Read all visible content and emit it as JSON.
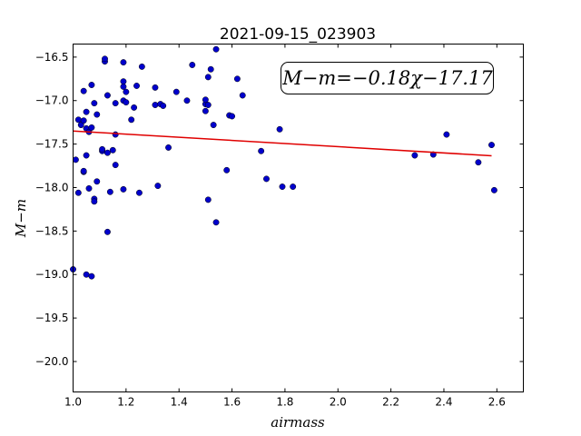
{
  "chart_data": {
    "type": "scatter",
    "title": "2021-09-15_023903",
    "xlabel": "airmass",
    "ylabel": "M−m",
    "xlim": [
      1.0,
      2.7
    ],
    "ylim": [
      -20.35,
      -16.35
    ],
    "y_inverted": true,
    "x_ticks": [
      1.0,
      1.2,
      1.4,
      1.6,
      1.8,
      2.0,
      2.2,
      2.4,
      2.6
    ],
    "x_tick_labels": [
      "1.0",
      "1.2",
      "1.4",
      "1.6",
      "1.8",
      "2.0",
      "2.2",
      "2.4",
      "2.6"
    ],
    "y_ticks": [
      -16.5,
      -17.0,
      -17.5,
      -18.0,
      -18.5,
      -19.0,
      -19.5,
      -20.0
    ],
    "y_tick_labels": [
      "−16.5",
      "−17.0",
      "−17.5",
      "−18.0",
      "−18.5",
      "−19.0",
      "−19.5",
      "−20.0"
    ],
    "grid": false,
    "annotation": "M−m=−0.18χ−17.17",
    "fit": {
      "slope": -0.18,
      "intercept": -17.17,
      "x_range": [
        1.0,
        2.58
      ],
      "color": "#e00000"
    },
    "marker_color": "#0000cc",
    "points": [
      [
        1.0,
        -18.94
      ],
      [
        1.01,
        -17.68
      ],
      [
        1.02,
        -17.22
      ],
      [
        1.02,
        -18.06
      ],
      [
        1.03,
        -17.28
      ],
      [
        1.04,
        -17.23
      ],
      [
        1.04,
        -17.82
      ],
      [
        1.04,
        -17.81
      ],
      [
        1.04,
        -16.89
      ],
      [
        1.05,
        -17.32
      ],
      [
        1.05,
        -17.13
      ],
      [
        1.05,
        -17.63
      ],
      [
        1.05,
        -19.0
      ],
      [
        1.06,
        -17.36
      ],
      [
        1.06,
        -18.01
      ],
      [
        1.07,
        -19.02
      ],
      [
        1.07,
        -16.82
      ],
      [
        1.07,
        -17.31
      ],
      [
        1.08,
        -17.03
      ],
      [
        1.08,
        -18.13
      ],
      [
        1.08,
        -18.16
      ],
      [
        1.09,
        -17.93
      ],
      [
        1.09,
        -17.16
      ],
      [
        1.11,
        -17.58
      ],
      [
        1.11,
        -17.56
      ],
      [
        1.12,
        -16.55
      ],
      [
        1.12,
        -16.52
      ],
      [
        1.13,
        -18.51
      ],
      [
        1.13,
        -16.94
      ],
      [
        1.13,
        -17.6
      ],
      [
        1.14,
        -18.05
      ],
      [
        1.15,
        -17.57
      ],
      [
        1.16,
        -17.03
      ],
      [
        1.16,
        -17.39
      ],
      [
        1.16,
        -17.74
      ],
      [
        1.19,
        -17.0
      ],
      [
        1.19,
        -16.84
      ],
      [
        1.19,
        -16.56
      ],
      [
        1.19,
        -16.78
      ],
      [
        1.19,
        -18.02
      ],
      [
        1.2,
        -17.02
      ],
      [
        1.2,
        -16.9
      ],
      [
        1.22,
        -17.22
      ],
      [
        1.23,
        -17.08
      ],
      [
        1.24,
        -16.83
      ],
      [
        1.25,
        -18.06
      ],
      [
        1.26,
        -16.61
      ],
      [
        1.31,
        -17.05
      ],
      [
        1.31,
        -16.85
      ],
      [
        1.32,
        -17.98
      ],
      [
        1.33,
        -17.04
      ],
      [
        1.34,
        -17.06
      ],
      [
        1.36,
        -17.54
      ],
      [
        1.39,
        -16.9
      ],
      [
        1.43,
        -17.0
      ],
      [
        1.45,
        -16.59
      ],
      [
        1.5,
        -17.04
      ],
      [
        1.5,
        -17.12
      ],
      [
        1.5,
        -16.99
      ],
      [
        1.51,
        -16.73
      ],
      [
        1.51,
        -17.05
      ],
      [
        1.51,
        -18.14
      ],
      [
        1.52,
        -16.64
      ],
      [
        1.53,
        -17.28
      ],
      [
        1.54,
        -16.41
      ],
      [
        1.54,
        -18.4
      ],
      [
        1.58,
        -17.8
      ],
      [
        1.59,
        -17.17
      ],
      [
        1.6,
        -17.18
      ],
      [
        1.62,
        -16.75
      ],
      [
        1.64,
        -16.94
      ],
      [
        1.71,
        -17.58
      ],
      [
        1.73,
        -17.9
      ],
      [
        1.78,
        -17.33
      ],
      [
        1.79,
        -17.99
      ],
      [
        1.83,
        -17.99
      ],
      [
        2.29,
        -17.63
      ],
      [
        2.36,
        -17.62
      ],
      [
        2.41,
        -17.39
      ],
      [
        2.53,
        -17.71
      ],
      [
        2.58,
        -17.51
      ],
      [
        2.59,
        -18.03
      ]
    ]
  }
}
